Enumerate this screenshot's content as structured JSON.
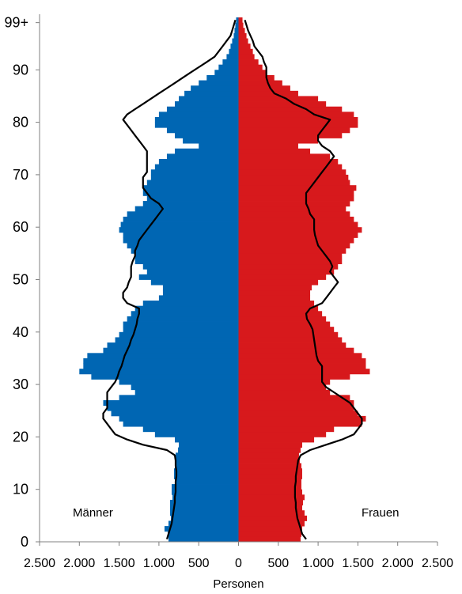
{
  "chart_data": {
    "type": "bar",
    "orientation": "horizontal-pyramid",
    "title": "",
    "xlabel": "Personen",
    "ylabel": "",
    "xlim": [
      -2500,
      2500
    ],
    "ylim": [
      0,
      100
    ],
    "x_tick_labels": [
      "2.500",
      "2.000",
      "1.500",
      "1.000",
      "500",
      "0",
      "500",
      "1.000",
      "1.500",
      "2.000",
      "2.500"
    ],
    "x_tick_values": [
      -2500,
      -2000,
      -1500,
      -1000,
      -500,
      0,
      500,
      1000,
      1500,
      2000,
      2500
    ],
    "y_tick_labels": [
      "0",
      "10",
      "20",
      "30",
      "40",
      "50",
      "60",
      "70",
      "80",
      "90",
      "99+"
    ],
    "y_tick_values": [
      0,
      10,
      20,
      30,
      40,
      50,
      60,
      70,
      80,
      90,
      99
    ],
    "grid": false,
    "ages": [
      0,
      1,
      2,
      3,
      4,
      5,
      6,
      7,
      8,
      9,
      10,
      11,
      12,
      13,
      14,
      15,
      16,
      17,
      18,
      19,
      20,
      21,
      22,
      23,
      24,
      25,
      26,
      27,
      28,
      29,
      30,
      31,
      32,
      33,
      34,
      35,
      36,
      37,
      38,
      39,
      40,
      41,
      42,
      43,
      44,
      45,
      46,
      47,
      48,
      49,
      50,
      51,
      52,
      53,
      54,
      55,
      56,
      57,
      58,
      59,
      60,
      61,
      62,
      63,
      64,
      65,
      66,
      67,
      68,
      69,
      70,
      71,
      72,
      73,
      74,
      75,
      76,
      77,
      78,
      79,
      80,
      81,
      82,
      83,
      84,
      85,
      86,
      87,
      88,
      89,
      90,
      91,
      92,
      93,
      94,
      95,
      96,
      97,
      98,
      99
    ],
    "series": [
      {
        "name": "Männer",
        "color": "#0066b3",
        "values": [
          880,
          890,
          930,
          880,
          850,
          860,
          860,
          860,
          830,
          840,
          840,
          800,
          810,
          810,
          800,
          790,
          790,
          760,
          750,
          800,
          1050,
          1200,
          1450,
          1500,
          1600,
          1650,
          1700,
          1500,
          1300,
          1350,
          1500,
          1850,
          2000,
          1950,
          1950,
          1900,
          1700,
          1650,
          1550,
          1500,
          1450,
          1450,
          1400,
          1350,
          1300,
          1200,
          1000,
          950,
          950,
          1100,
          1250,
          1150,
          1200,
          1300,
          1300,
          1350,
          1400,
          1450,
          1450,
          1500,
          1480,
          1450,
          1400,
          1300,
          1200,
          1150,
          1200,
          1200,
          1150,
          1100,
          1100,
          1050,
          1000,
          900,
          800,
          500,
          700,
          800,
          900,
          1050,
          1050,
          1000,
          900,
          800,
          750,
          680,
          600,
          500,
          400,
          300,
          250,
          200,
          150,
          120,
          100,
          80,
          60,
          50,
          40,
          30
        ]
      },
      {
        "name": "Frauen",
        "color": "#d7191c",
        "values": [
          780,
          790,
          800,
          830,
          860,
          830,
          800,
          810,
          830,
          800,
          790,
          790,
          800,
          800,
          790,
          770,
          760,
          780,
          800,
          950,
          1100,
          1200,
          1550,
          1600,
          1500,
          1450,
          1450,
          1400,
          1150,
          1100,
          1150,
          1400,
          1650,
          1600,
          1600,
          1550,
          1450,
          1350,
          1300,
          1250,
          1200,
          1150,
          1100,
          1050,
          1000,
          950,
          900,
          900,
          920,
          1000,
          1100,
          1200,
          1250,
          1300,
          1300,
          1350,
          1400,
          1450,
          1500,
          1550,
          1500,
          1450,
          1400,
          1350,
          1400,
          1450,
          1450,
          1480,
          1400,
          1380,
          1350,
          1300,
          1250,
          1150,
          900,
          750,
          1000,
          1300,
          1400,
          1500,
          1500,
          1450,
          1300,
          1100,
          1000,
          750,
          650,
          550,
          450,
          350,
          300,
          250,
          200,
          180,
          150,
          120,
          100,
          80,
          60,
          50
        ]
      },
      {
        "name": "",
        "color": "#000000",
        "style": "outline",
        "left_values": [
          900,
          880,
          860,
          840,
          830,
          820,
          810,
          800,
          800,
          790,
          790,
          790,
          780,
          780,
          790,
          790,
          800,
          900,
          1200,
          1400,
          1550,
          1600,
          1650,
          1700,
          1700,
          1650,
          1650,
          1650,
          1650,
          1600,
          1550,
          1520,
          1500,
          1470,
          1450,
          1430,
          1400,
          1370,
          1350,
          1320,
          1300,
          1280,
          1270,
          1250,
          1250,
          1400,
          1450,
          1450,
          1400,
          1380,
          1350,
          1350,
          1350,
          1330,
          1300,
          1300,
          1270,
          1250,
          1200,
          1150,
          1100,
          1050,
          1000,
          950,
          1000,
          1100,
          1150,
          1200,
          1200,
          1200,
          1150,
          1150,
          1150,
          1150,
          1150,
          1200,
          1250,
          1300,
          1350,
          1400,
          1450,
          1400,
          1300,
          1200,
          1100,
          1000,
          900,
          800,
          700,
          600,
          500,
          400,
          300,
          250,
          200,
          150,
          100,
          80,
          60,
          40
        ],
        "right_values": [
          850,
          800,
          780,
          760,
          740,
          730,
          720,
          720,
          710,
          710,
          710,
          720,
          720,
          730,
          740,
          750,
          780,
          900,
          1100,
          1300,
          1450,
          1500,
          1550,
          1550,
          1500,
          1450,
          1400,
          1300,
          1200,
          1100,
          1050,
          1050,
          1050,
          1050,
          1000,
          980,
          970,
          960,
          950,
          940,
          930,
          900,
          860,
          850,
          900,
          1050,
          1100,
          1150,
          1200,
          1250,
          1200,
          1150,
          1180,
          1150,
          1100,
          1050,
          1000,
          980,
          960,
          950,
          950,
          950,
          900,
          880,
          850,
          850,
          850,
          900,
          950,
          1000,
          1050,
          1100,
          1150,
          1200,
          1150,
          1050,
          1000,
          1000,
          1050,
          1100,
          1150,
          950,
          850,
          700,
          600,
          450,
          400,
          370,
          350,
          350,
          350,
          320,
          300,
          250,
          200,
          180,
          150,
          120,
          100,
          80
        ]
      }
    ],
    "legend": [
      {
        "label": "Männer",
        "position": "bottom-left"
      },
      {
        "label": "Frauen",
        "position": "bottom-right"
      }
    ]
  }
}
